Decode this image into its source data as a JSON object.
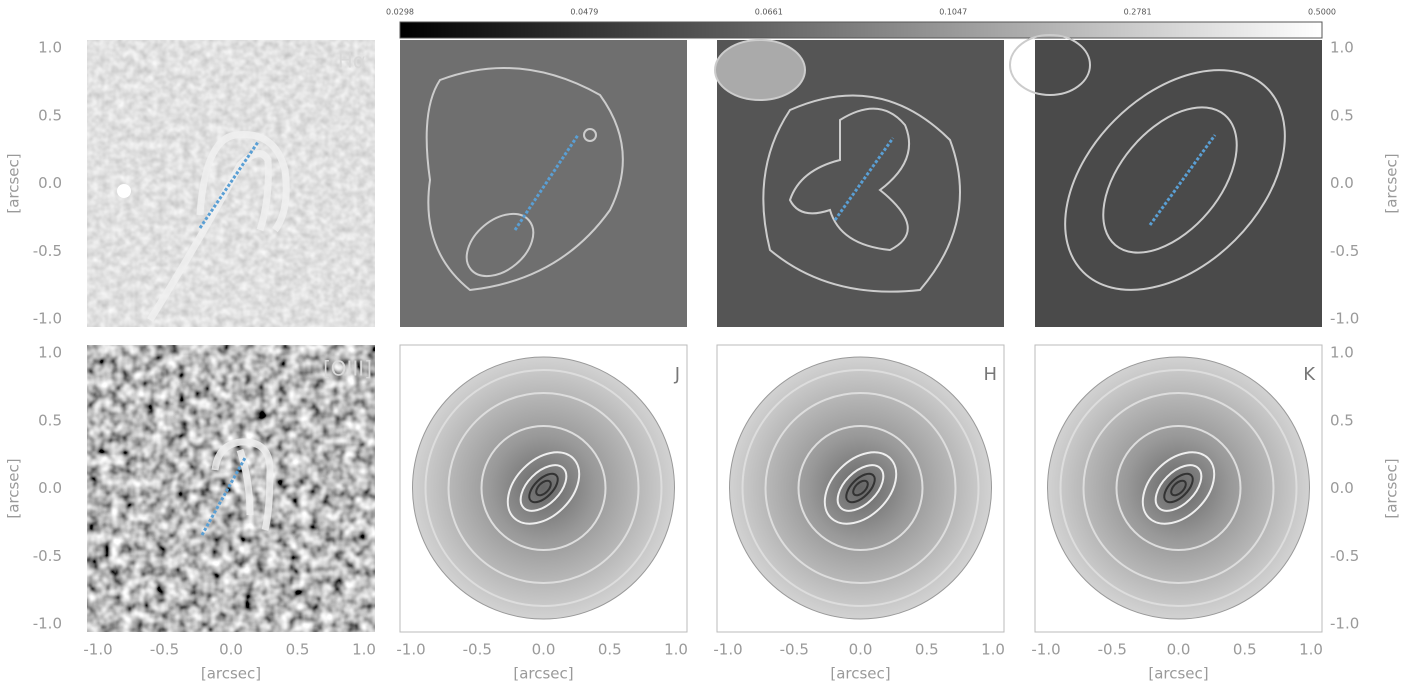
{
  "colorbar": {
    "ticks": [
      "0.0298",
      "0.0479",
      "0.0661",
      "0.1047",
      "0.2781",
      "0.5000"
    ]
  },
  "panel_labels": {
    "halpha": "Hα",
    "oiii": "[OIII]",
    "j": "J",
    "h": "H",
    "k": "K"
  },
  "axes": {
    "ticks": [
      "-1.0",
      "-0.5",
      "0.0",
      "0.5",
      "1.0"
    ],
    "label": "[arcsec]"
  }
}
